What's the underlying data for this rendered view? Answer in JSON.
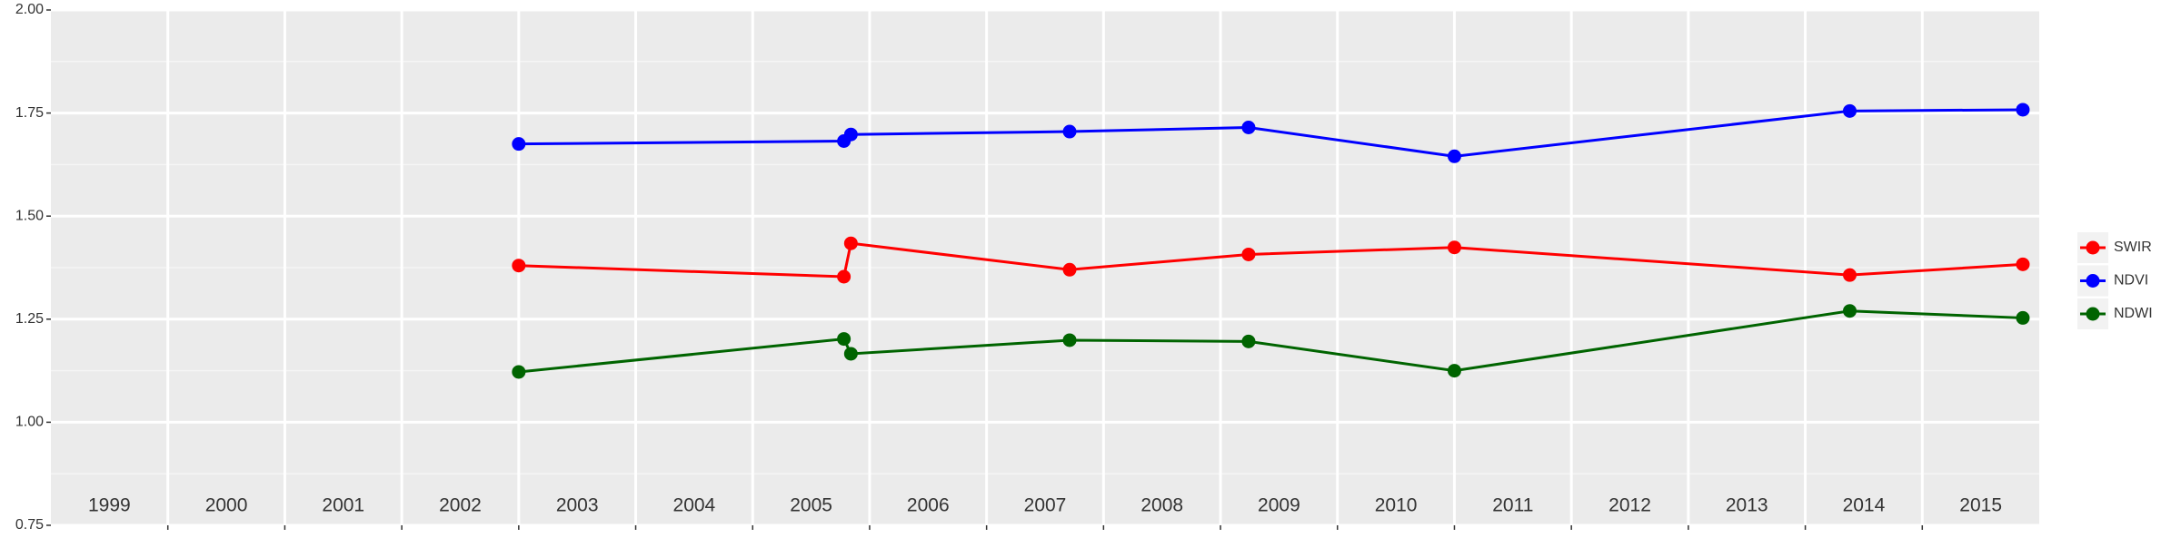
{
  "chart_data": {
    "type": "line",
    "x": [
      2002.5,
      2005.28,
      2005.34,
      2007.21,
      2008.74,
      2010.5,
      2013.88,
      2015.36
    ],
    "series": [
      {
        "name": "SWIR",
        "color": "#ff0000",
        "values": [
          1.38,
          1.353,
          1.434,
          1.37,
          1.407,
          1.424,
          1.357,
          1.383
        ]
      },
      {
        "name": "NDVI",
        "color": "#0000ff",
        "values": [
          1.675,
          1.682,
          1.698,
          1.705,
          1.715,
          1.645,
          1.755,
          1.758
        ]
      },
      {
        "name": "NDWI",
        "color": "#006400",
        "values": [
          1.122,
          1.202,
          1.166,
          1.199,
          1.196,
          1.125,
          1.27,
          1.253
        ]
      }
    ],
    "xlim": [
      1998.5,
      2015.5
    ],
    "xticks": [
      1999,
      2000,
      2001,
      2002,
      2003,
      2004,
      2005,
      2006,
      2007,
      2008,
      2009,
      2010,
      2011,
      2012,
      2013,
      2014,
      2015
    ],
    "ylim": [
      0.75,
      2.0
    ],
    "yticks": [
      {
        "value": 0.75,
        "label": "0.75"
      },
      {
        "value": 1.0,
        "label": "1.00"
      },
      {
        "value": 1.25,
        "label": "1.25"
      },
      {
        "value": 1.5,
        "label": "1.50"
      },
      {
        "value": 1.75,
        "label": "1.75"
      },
      {
        "value": 2.0,
        "label": "2.00"
      }
    ],
    "grid": true,
    "legend": "right"
  }
}
